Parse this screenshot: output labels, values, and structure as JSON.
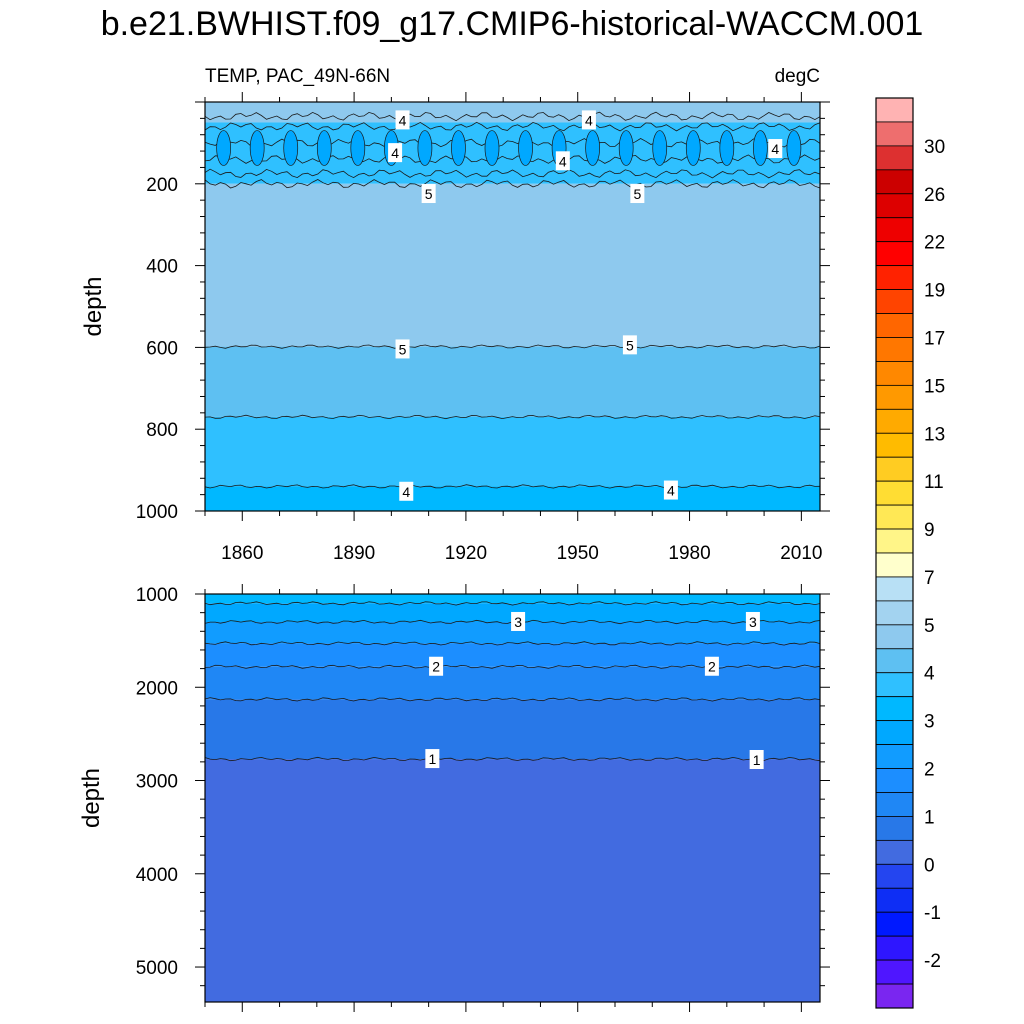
{
  "title": "b.e21.BWHIST.f09_g17.CMIP6-historical-WACCM.001",
  "chart_data": {
    "type": "contour",
    "title": "b.e21.BWHIST.f09_g17.CMIP6-historical-WACCM.001",
    "subtitle_left": "TEMP, PAC_49N-66N",
    "subtitle_right": "degC",
    "x": {
      "range": [
        1850,
        2015
      ],
      "ticks": [
        1860,
        1890,
        1920,
        1950,
        1980,
        2010
      ],
      "tick_labels": [
        "1860",
        "1890",
        "1920",
        "1950",
        "1980",
        "2010"
      ]
    },
    "panels": [
      {
        "name": "upper",
        "ylabel": "depth",
        "ylim": [
          0,
          1000
        ],
        "y_reversed": true,
        "yticks": [
          200,
          400,
          600,
          800,
          1000
        ],
        "ytick_labels": [
          "200",
          "400",
          "600",
          "800",
          "1000"
        ],
        "show_x_tick_labels": true,
        "bands": [
          {
            "from": 0,
            "to": 50,
            "color": "#8ec9ee"
          },
          {
            "from": 50,
            "to": 200,
            "color": "#2fc0ff"
          },
          {
            "from": 200,
            "to": 598,
            "color": "#8ec9ee"
          },
          {
            "from": 598,
            "to": 770,
            "color": "#5ec0f2"
          },
          {
            "from": 770,
            "to": 940,
            "color": "#2fc0ff"
          },
          {
            "from": 940,
            "to": 1000,
            "color": "#00b8ff"
          }
        ],
        "contour_depths": [
          35,
          60,
          100,
          140,
          175,
          200,
          598,
          770,
          940
        ],
        "contour_labels": [
          {
            "text": "4",
            "year": 1903,
            "depth": 45
          },
          {
            "text": "4",
            "year": 1953,
            "depth": 45
          },
          {
            "text": "4",
            "year": 1901,
            "depth": 125
          },
          {
            "text": "4",
            "year": 1946,
            "depth": 145
          },
          {
            "text": "4",
            "year": 2003,
            "depth": 115
          },
          {
            "text": "5",
            "year": 1910,
            "depth": 225
          },
          {
            "text": "5",
            "year": 1966,
            "depth": 225
          },
          {
            "text": "5",
            "year": 1903,
            "depth": 605
          },
          {
            "text": "5",
            "year": 1964,
            "depth": 595
          },
          {
            "text": "4",
            "year": 1904,
            "depth": 953
          },
          {
            "text": "4",
            "year": 1975,
            "depth": 950
          }
        ]
      },
      {
        "name": "lower",
        "ylabel": "depth",
        "ylim": [
          1000,
          5375
        ],
        "y_reversed": true,
        "yticks": [
          1000,
          2000,
          3000,
          4000,
          5000
        ],
        "ytick_labels": [
          "1000",
          "2000",
          "3000",
          "4000",
          "5000"
        ],
        "show_x_tick_labels": false,
        "bands": [
          {
            "from": 1000,
            "to": 1100,
            "color": "#00b8ff"
          },
          {
            "from": 1100,
            "to": 1300,
            "color": "#00a8ff"
          },
          {
            "from": 1300,
            "to": 1530,
            "color": "#119cff"
          },
          {
            "from": 1530,
            "to": 1780,
            "color": "#1c8eff"
          },
          {
            "from": 1780,
            "to": 2130,
            "color": "#1f87f5"
          },
          {
            "from": 2130,
            "to": 2770,
            "color": "#2878e8"
          },
          {
            "from": 2770,
            "to": 5375,
            "color": "#426be0"
          }
        ],
        "contour_depths": [
          1100,
          1300,
          1530,
          1780,
          2130,
          2770
        ],
        "contour_labels": [
          {
            "text": "3",
            "year": 1934,
            "depth": 1300
          },
          {
            "text": "3",
            "year": 1997,
            "depth": 1300
          },
          {
            "text": "2",
            "year": 1912,
            "depth": 1780
          },
          {
            "text": "2",
            "year": 1986,
            "depth": 1780
          },
          {
            "text": "1",
            "year": 1911,
            "depth": 2770
          },
          {
            "text": "1",
            "year": 1998,
            "depth": 2780
          }
        ]
      }
    ],
    "colorbar": {
      "labels": [
        "30",
        "26",
        "22",
        "19",
        "17",
        "15",
        "13",
        "11",
        "9",
        "7",
        "5",
        "4",
        "3",
        "2",
        "1",
        "0",
        "-1",
        "-2"
      ],
      "colors": [
        "#ffb3b3",
        "#ee6e6e",
        "#dd3030",
        "#cc0000",
        "#dd0000",
        "#ee0000",
        "#ff0000",
        "#ff2200",
        "#ff4400",
        "#ff6600",
        "#ff7700",
        "#ff8800",
        "#ff9900",
        "#ffaa00",
        "#ffbb00",
        "#ffcc22",
        "#ffdd33",
        "#ffe855",
        "#fff588",
        "#ffffcc",
        "#b8e0f5",
        "#a3d3f0",
        "#8ec9ee",
        "#5ec0f2",
        "#2fc0ff",
        "#00b8ff",
        "#00a8ff",
        "#119cff",
        "#1c8eff",
        "#1f87f5",
        "#2878e8",
        "#426be0",
        "#2445f0",
        "#0e2ef5",
        "#0019ff",
        "#2e16ff",
        "#4f16ff",
        "#7a26f0"
      ]
    }
  }
}
